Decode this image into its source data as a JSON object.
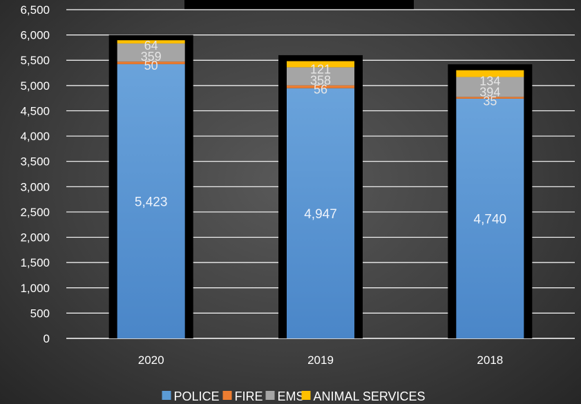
{
  "chart_data": {
    "type": "bar",
    "stacked": true,
    "categories": [
      "2020",
      "2019",
      "2018"
    ],
    "series": [
      {
        "name": "POLICE",
        "values": [
          5423,
          4947,
          4740
        ],
        "color": "#5b9bd5"
      },
      {
        "name": "FIRE",
        "values": [
          50,
          56,
          35
        ],
        "color": "#ed7d31"
      },
      {
        "name": "EMS",
        "values": [
          359,
          358,
          394
        ],
        "color": "#a5a5a5"
      },
      {
        "name": "ANIMAL SERVICES",
        "values": [
          64,
          121,
          134
        ],
        "color": "#ffc000"
      }
    ],
    "totals_outline": [
      6000,
      5600,
      5420
    ],
    "ylim": [
      0,
      6500
    ],
    "yticks": [
      0,
      500,
      1000,
      1500,
      2000,
      2500,
      3000,
      3500,
      4000,
      4500,
      5000,
      5500,
      6000,
      6500
    ],
    "ytick_labels": [
      "0",
      "500",
      "1,000",
      "1,500",
      "2,000",
      "2,500",
      "3,000",
      "3,500",
      "4,000",
      "4,500",
      "5,000",
      "5,500",
      "6,000",
      "6,500"
    ],
    "grid": true,
    "legend_position": "bottom",
    "title": ""
  }
}
